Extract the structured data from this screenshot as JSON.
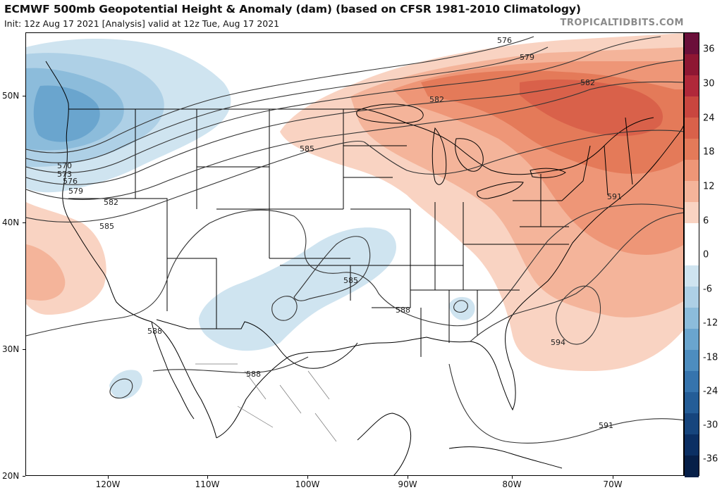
{
  "header": {
    "title": "ECMWF 500mb Geopotential Height & Anomaly (dam) (based on CFSR 1981-2010 Climatology)",
    "subtitle": "Init: 12z Aug 17 2021   [Analysis]   valid at 12z Tue, Aug 17 2021",
    "credit": "TROPICALTIDBITS.COM"
  },
  "axes": {
    "lat_labels": [
      "50N",
      "40N",
      "30N",
      "20N"
    ],
    "lon_labels": [
      "120W",
      "110W",
      "100W",
      "90W",
      "80W",
      "70W"
    ]
  },
  "colorbar": {
    "labels": [
      "36",
      "30",
      "24",
      "18",
      "12",
      "6",
      "0",
      "-6",
      "-12",
      "-18",
      "-24",
      "-30",
      "-36"
    ],
    "colors": [
      "#6b0f3a",
      "#8e1733",
      "#b0283a",
      "#c9463f",
      "#d9614a",
      "#e47a59",
      "#ee9677",
      "#f4b49a",
      "#f9d3c2",
      "#ffffff",
      "#ffffff",
      "#cfe4f0",
      "#aed0e6",
      "#8cbcdb",
      "#6aa5ce",
      "#4d8dbf",
      "#3674ad",
      "#245d97",
      "#16457d",
      "#0b2f63",
      "#061f48"
    ]
  },
  "contour_labels": [
    "570",
    "573",
    "576",
    "579",
    "582",
    "585",
    "576",
    "579",
    "582",
    "582",
    "585",
    "585",
    "588",
    "588",
    "588",
    "591",
    "591",
    "594"
  ]
}
